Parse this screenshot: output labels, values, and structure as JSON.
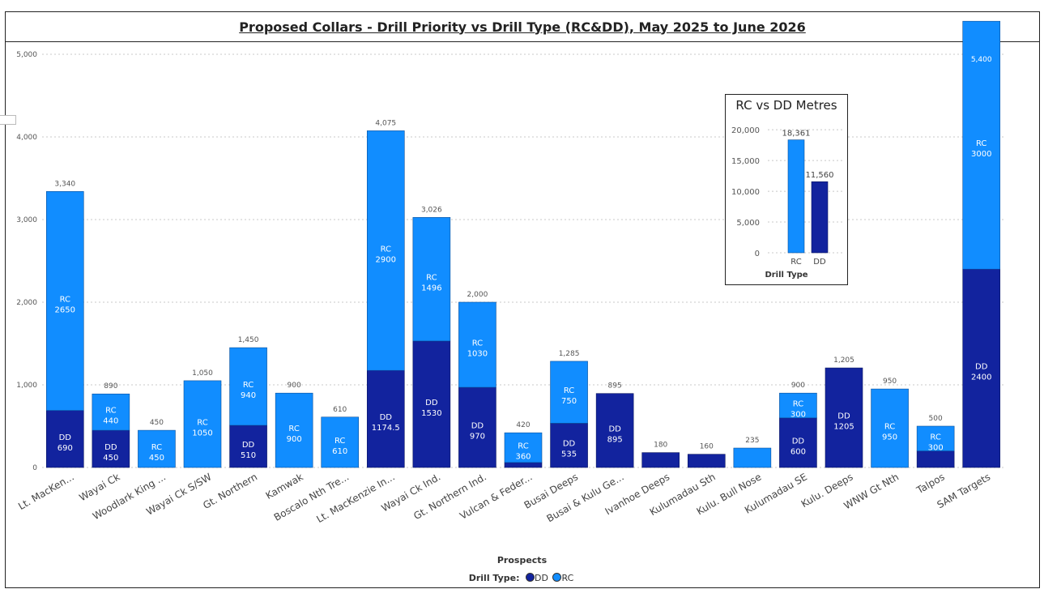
{
  "title": "Proposed Collars - Drill Priority vs Drill Type (RC&DD), May 2025 to June 2026",
  "legend": {
    "label": "Drill Type:",
    "items": [
      "DD",
      "RC"
    ]
  },
  "colors": {
    "DD": "#12239e",
    "RC": "#118dff",
    "grid": "#c8c8c8"
  },
  "chart_data": [
    {
      "type": "bar",
      "stacked": true,
      "xlabel": "Prospects",
      "ylabel": "",
      "ylim": [
        0,
        5000
      ],
      "yticks": [
        0,
        1000,
        2000,
        3000,
        4000,
        5000
      ],
      "ytick_labels": [
        "0",
        "1,000",
        "2,000",
        "3,000",
        "4,000",
        "5,000"
      ],
      "grid": true,
      "legend_position": "bottom",
      "categories": [
        "Lt. MacKen...",
        "Wayai Ck",
        "Woodlark King ...",
        "Wayai Ck S/SW",
        "Gt. Northern",
        "Kamwak",
        "Boscalo Nth Tre...",
        "Lt. MacKenzie In...",
        "Wayai Ck Ind.",
        "Gt. Northern Ind.",
        "Vulcan & Feder...",
        "Busai Deeps",
        "Busai & Kulu Ge...",
        "Ivanhoe Deeps",
        "Kulumadau Sth",
        "Kulu. Bull Nose",
        "Kulumadau SE",
        "Kulu. Deeps",
        "WNW Gt Nth",
        "Talpos",
        "SAM Targets"
      ],
      "series": [
        {
          "name": "DD",
          "values": [
            690,
            450,
            0,
            0,
            510,
            0,
            0,
            1174.5,
            1530,
            970,
            60,
            535,
            895,
            180,
            160,
            0,
            600,
            1205,
            0,
            200,
            2400
          ],
          "labels": [
            "DD\n690",
            "DD\n450",
            "",
            "",
            "DD\n510",
            "",
            "",
            "DD\n1174.5",
            "DD\n1530",
            "DD\n970",
            "",
            "DD\n535",
            "DD\n895",
            "",
            "",
            "",
            "DD\n600",
            "DD\n1205",
            "",
            "",
            "DD\n2400"
          ]
        },
        {
          "name": "RC",
          "values": [
            2650,
            440,
            450,
            1050,
            940,
            900,
            610,
            2900,
            1496,
            1030,
            360,
            750,
            0,
            0,
            0,
            235,
            300,
            0,
            950,
            300,
            3000
          ],
          "labels": [
            "RC\n2650",
            "RC\n440",
            "RC\n450",
            "RC\n1050",
            "RC\n940",
            "RC\n900",
            "RC\n610",
            "RC\n2900",
            "RC\n1496",
            "RC\n1030",
            "RC\n360",
            "RC\n750",
            "",
            "",
            "",
            "",
            "RC\n300",
            "",
            "RC\n950",
            "RC\n300",
            "RC\n3000"
          ]
        }
      ],
      "totals": [
        "3,340",
        "890",
        "450",
        "1,050",
        "1,450",
        "900",
        "610",
        "4,075",
        "3,026",
        "2,000",
        "420",
        "1,285",
        "895",
        "180",
        "160",
        "235",
        "900",
        "1,205",
        "950",
        "500",
        "5,400"
      ]
    },
    {
      "type": "bar",
      "title": "RC vs DD Metres",
      "xlabel": "Drill Type",
      "categories": [
        "RC",
        "DD"
      ],
      "values": [
        18361,
        11560
      ],
      "value_labels": [
        "18,361",
        "11,560"
      ],
      "ylim": [
        0,
        22000
      ],
      "yticks": [
        0,
        5000,
        10000,
        15000,
        20000
      ],
      "ytick_labels": [
        "0",
        "5,000",
        "10,000",
        "15,000",
        "20,000"
      ],
      "grid": true
    }
  ]
}
